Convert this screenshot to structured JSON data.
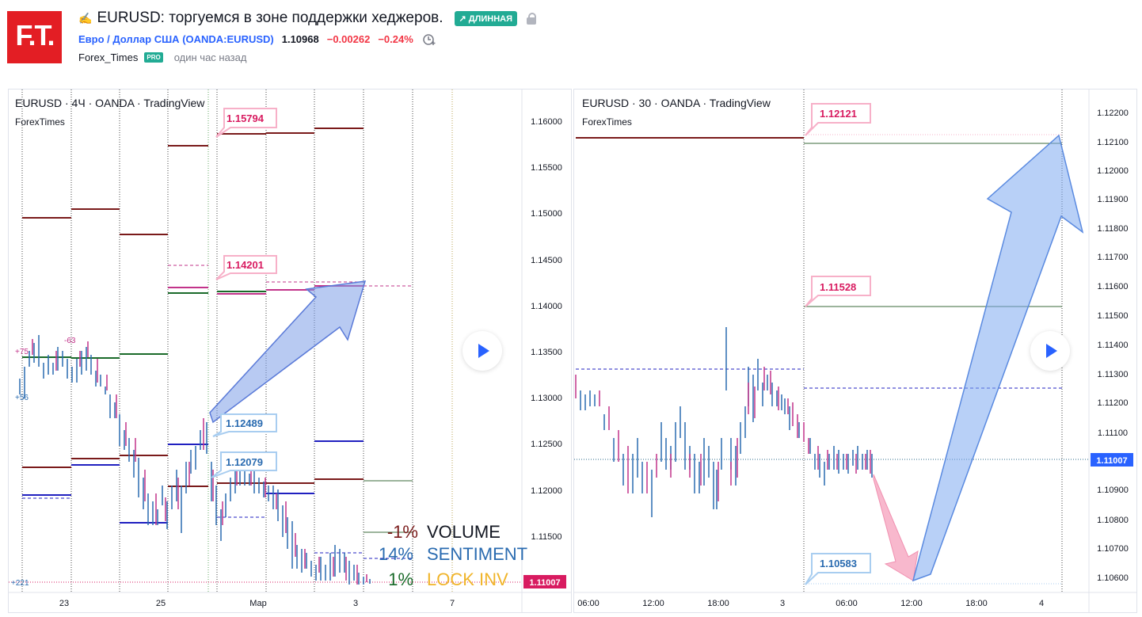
{
  "header": {
    "logo_text": "F.T.",
    "pencil_icon": "✍",
    "idea_title": "EURUSD: торгуемся в зоне поддержки хеджеров.",
    "direction_badge": "↗ ДЛИННАЯ",
    "symbol_name": "Евро / Доллар США",
    "symbol_code": "(OANDA:EURUSD)",
    "last_price": "1.10968",
    "change": "−0.00262",
    "change_pct": "−0.24%",
    "author": "Forex_Times",
    "author_badge": "PRO",
    "published": "один час назад"
  },
  "left_chart": {
    "title": "EURUSD · 4Ч · OANDA · TradingView",
    "subtitle": "ForexTimes",
    "price_axis": [
      "1.16000",
      "1.15500",
      "1.15000",
      "1.14500",
      "1.14000",
      "1.13500",
      "1.13000",
      "1.12500",
      "1.12000",
      "1.11500"
    ],
    "current_price": "1.11007",
    "time_axis": [
      "23",
      "25",
      "Мар",
      "3",
      "7"
    ],
    "labels": {
      "l1": "1.15794",
      "l2": "1.14201",
      "l3": "1.12489",
      "l4": "1.12079"
    },
    "small_labels": {
      "p75": "+75",
      "m63": "-63",
      "p56": "+56",
      "p221": "+221"
    },
    "legend": [
      {
        "pct": "-1%",
        "name": "VOLUME"
      },
      {
        "pct": "14%",
        "name": "SENTIMENT"
      },
      {
        "pct": "1%",
        "name": "LOCK INV"
      }
    ]
  },
  "right_chart": {
    "title": "EURUSD · 30 · OANDA · TradingView",
    "subtitle": "ForexTimes",
    "price_axis": [
      "1.12200",
      "1.12100",
      "1.12000",
      "1.11900",
      "1.11800",
      "1.11700",
      "1.11600",
      "1.11500",
      "1.11400",
      "1.11300",
      "1.11200",
      "1.11100",
      "1.11000",
      "1.10900",
      "1.10800",
      "1.10700",
      "1.10600"
    ],
    "current_price": "1.11007",
    "time_axis": [
      "06:00",
      "12:00",
      "18:00",
      "3",
      "06:00",
      "12:00",
      "18:00",
      "4"
    ],
    "labels": {
      "r1": "1.12121",
      "r2": "1.11528",
      "r3": "1.10583"
    }
  },
  "colors": {
    "up": "#2962ff",
    "down": "#d81b60",
    "brand": "#e31e24",
    "badge": "#22ab94"
  }
}
